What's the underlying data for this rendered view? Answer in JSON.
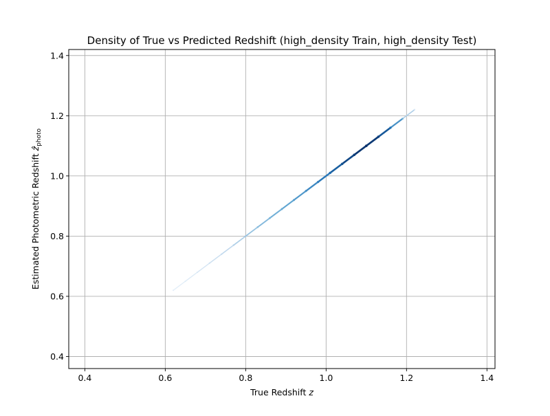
{
  "chart_data": {
    "type": "scatter",
    "title": "Density of True vs Predicted Redshift (high_density Train, high_density Test)",
    "xlabel": "True Redshift z",
    "ylabel": "Estimated Photometric Redshift ẑ_photo",
    "xlim": [
      0.36,
      1.42
    ],
    "ylim": [
      0.36,
      1.42
    ],
    "xticks": [
      0.4,
      0.6,
      0.8,
      1.0,
      1.2,
      1.4
    ],
    "yticks": [
      0.4,
      0.6,
      0.8,
      1.0,
      1.2,
      1.4
    ],
    "xtick_labels": [
      "0.4",
      "0.6",
      "0.8",
      "1.0",
      "1.2",
      "1.4"
    ],
    "ytick_labels": [
      "0.4",
      "0.6",
      "0.8",
      "1.0",
      "1.2",
      "1.4"
    ],
    "grid": true,
    "colormap": "Blues",
    "series": [
      {
        "x": [
          0.62,
          0.65,
          0.68,
          0.71,
          0.74,
          0.77,
          0.8,
          0.83,
          0.86,
          0.89,
          0.92,
          0.95,
          0.98,
          1.01,
          1.04,
          1.07,
          1.1,
          1.13,
          1.16,
          1.19,
          1.22
        ],
        "y": [
          0.62,
          0.65,
          0.68,
          0.71,
          0.74,
          0.77,
          0.8,
          0.83,
          0.86,
          0.89,
          0.92,
          0.95,
          0.98,
          1.01,
          1.04,
          1.07,
          1.1,
          1.13,
          1.16,
          1.19,
          1.22
        ],
        "density": [
          0.05,
          0.08,
          0.12,
          0.18,
          0.25,
          0.32,
          0.4,
          0.46,
          0.52,
          0.58,
          0.64,
          0.7,
          0.78,
          0.86,
          0.92,
          0.97,
          1.0,
          0.96,
          0.85,
          0.55,
          0.15
        ]
      }
    ]
  }
}
